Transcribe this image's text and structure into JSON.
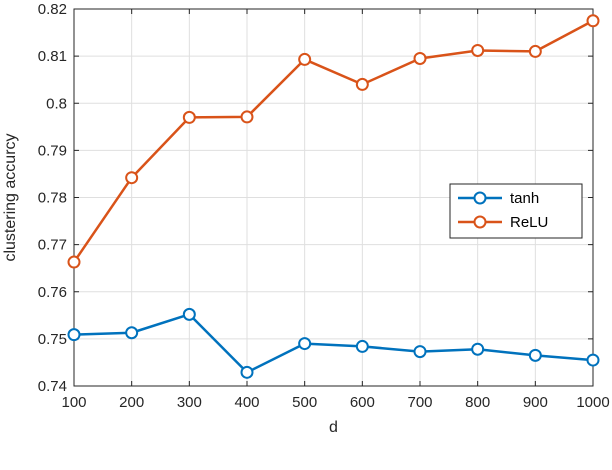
{
  "chart_data": {
    "type": "line",
    "title": "",
    "xlabel": "d",
    "ylabel": "clustering accurcy",
    "x": [
      100,
      200,
      300,
      400,
      500,
      600,
      700,
      800,
      900,
      1000
    ],
    "xlim": [
      100,
      1000
    ],
    "ylim": [
      0.74,
      0.82
    ],
    "xticks": [
      "100",
      "200",
      "300",
      "400",
      "500",
      "600",
      "700",
      "800",
      "900",
      "1000"
    ],
    "yticks": [
      "0.74",
      "0.75",
      "0.76",
      "0.77",
      "0.78",
      "0.79",
      "0.8",
      "0.81",
      "0.82"
    ],
    "grid": true,
    "legend_position": "right",
    "series": [
      {
        "name": "tanh",
        "color": "#0072BD",
        "marker": "circle",
        "values": [
          0.7509,
          0.7513,
          0.7552,
          0.7429,
          0.749,
          0.7484,
          0.7473,
          0.7478,
          0.7465,
          0.7455
        ]
      },
      {
        "name": "ReLU",
        "color": "#D95319",
        "marker": "circle",
        "values": [
          0.7663,
          0.7842,
          0.797,
          0.7971,
          0.8093,
          0.804,
          0.8095,
          0.8112,
          0.811,
          0.8175
        ]
      }
    ]
  }
}
